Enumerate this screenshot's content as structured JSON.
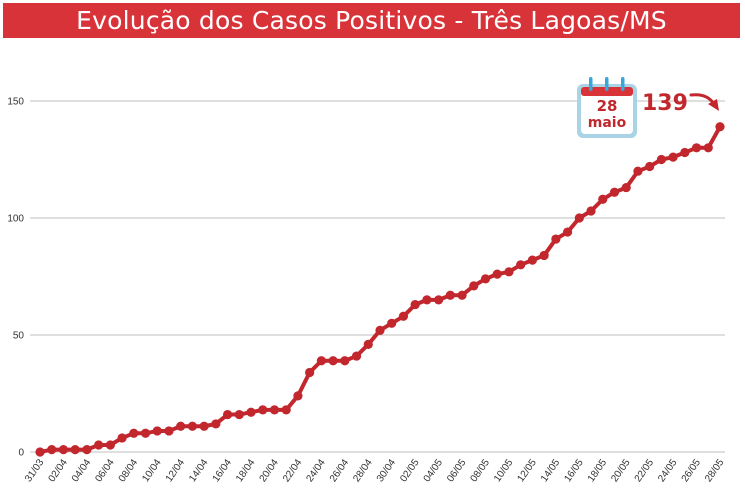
{
  "title": "Evolução dos Casos Positivos - Três Lagoas/MS",
  "colors": {
    "title_bg": "#d9333a",
    "series": "#c1272d",
    "grid": "#bfbfbf",
    "calendar_frame": "#a8d4e6",
    "calendar_header": "#d9333a"
  },
  "callout": {
    "day": "28",
    "month": "maio",
    "value_label": "139",
    "icon": "calendar-icon",
    "arrow_icon": "curved-arrow-icon"
  },
  "chart_data": {
    "type": "line",
    "title": "Evolução dos Casos Positivos - Três Lagoas/MS",
    "xlabel": "",
    "ylabel": "",
    "ylim": [
      0,
      150
    ],
    "yticks": [
      0,
      50,
      100,
      150
    ],
    "grid": true,
    "legend": "none",
    "x": [
      "31/03",
      "01/04",
      "02/04",
      "03/04",
      "04/04",
      "05/04",
      "06/04",
      "07/04",
      "08/04",
      "09/04",
      "10/04",
      "11/04",
      "12/04",
      "13/04",
      "14/04",
      "15/04",
      "16/04",
      "17/04",
      "18/04",
      "19/04",
      "20/04",
      "21/04",
      "22/04",
      "23/04",
      "24/04",
      "25/04",
      "26/04",
      "27/04",
      "28/04",
      "29/04",
      "30/04",
      "01/05",
      "02/05",
      "03/05",
      "04/05",
      "05/05",
      "06/05",
      "07/05",
      "08/05",
      "09/05",
      "10/05",
      "11/05",
      "12/05",
      "13/05",
      "14/05",
      "15/05",
      "16/05",
      "17/05",
      "18/05",
      "19/05",
      "20/05",
      "21/05",
      "22/05",
      "23/05",
      "24/05",
      "25/05",
      "26/05",
      "27/05",
      "28/05"
    ],
    "xtick_labels": [
      "31/03",
      "02/04",
      "04/04",
      "06/04",
      "08/04",
      "10/04",
      "12/04",
      "14/04",
      "16/04",
      "18/04",
      "20/04",
      "22/04",
      "24/04",
      "26/04",
      "28/04",
      "30/04",
      "02/05",
      "04/05",
      "06/05",
      "08/05",
      "10/05",
      "12/05",
      "14/05",
      "16/05",
      "18/05",
      "20/05",
      "22/05",
      "24/05",
      "26/05",
      "28/05"
    ],
    "series": [
      {
        "values": [
          0,
          1,
          1,
          1,
          1,
          3,
          3,
          6,
          8,
          8,
          9,
          9,
          11,
          11,
          11,
          12,
          16,
          16,
          17,
          18,
          18,
          18,
          24,
          34,
          39,
          39,
          39,
          41,
          46,
          52,
          55,
          58,
          63,
          65,
          65,
          67,
          67,
          71,
          74,
          76,
          77,
          80,
          82,
          84,
          91,
          94,
          100,
          103,
          108,
          111,
          113,
          120,
          122,
          125,
          126,
          128,
          130,
          130,
          139
        ]
      }
    ]
  }
}
